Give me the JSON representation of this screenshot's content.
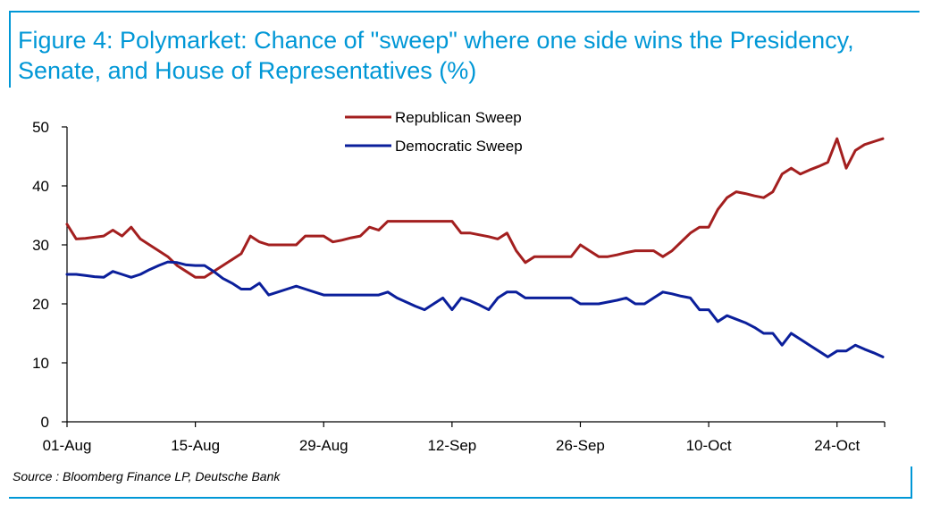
{
  "figure": {
    "title": "Figure 4: Polymarket: Chance of \"sweep\" where one side wins the Presidency, Senate, and House of Representatives (%)",
    "source": "Source : Bloomberg Finance LP, Deutsche Bank"
  },
  "chart_data": {
    "type": "line",
    "title": "",
    "xlabel": "",
    "ylabel": "",
    "x_unit": "days since 01-Aug",
    "x_range": [
      0,
      89
    ],
    "ylim": [
      0,
      50
    ],
    "y_ticks": [
      0,
      10,
      20,
      30,
      40,
      50
    ],
    "x_ticks": [
      {
        "label": "01-Aug",
        "day": 0
      },
      {
        "label": "15-Aug",
        "day": 14
      },
      {
        "label": "29-Aug",
        "day": 28
      },
      {
        "label": "12-Sep",
        "day": 42
      },
      {
        "label": "26-Sep",
        "day": 56
      },
      {
        "label": "10-Oct",
        "day": 70
      },
      {
        "label": "24-Oct",
        "day": 84
      }
    ],
    "legend_position": "top-center",
    "grid": false,
    "series": [
      {
        "name": "Republican Sweep",
        "color": "#a31f1f",
        "x": [
          0,
          1,
          2,
          3,
          4,
          5,
          6,
          7,
          8,
          9,
          10,
          11,
          12,
          13,
          14,
          15,
          16,
          17,
          18,
          19,
          20,
          21,
          22,
          23,
          24,
          25,
          26,
          27,
          28,
          29,
          30,
          31,
          32,
          33,
          34,
          35,
          36,
          37,
          38,
          39,
          40,
          41,
          42,
          43,
          44,
          45,
          46,
          47,
          48,
          49,
          50,
          51,
          52,
          53,
          54,
          55,
          56,
          57,
          58,
          59,
          60,
          61,
          62,
          63,
          64,
          65,
          66,
          67,
          68,
          69,
          70,
          71,
          72,
          73,
          74,
          75,
          76,
          77,
          78,
          79,
          80,
          81,
          82,
          83,
          84,
          85,
          86,
          87,
          88,
          89
        ],
        "values": [
          33.5,
          31,
          31.1,
          31.3,
          31.5,
          32.5,
          31.5,
          33,
          31,
          30,
          29,
          28,
          26.5,
          25.5,
          24.5,
          24.5,
          25.5,
          26.5,
          27.5,
          28.5,
          31.5,
          30.5,
          30,
          30,
          30,
          30,
          31.5,
          31.5,
          31.5,
          30.5,
          30.8,
          31.2,
          31.5,
          33,
          32.5,
          34,
          34,
          34,
          34,
          34,
          34,
          34,
          34,
          32,
          32,
          31.7,
          31.4,
          31,
          32,
          29,
          27,
          28,
          28,
          28,
          28,
          28,
          30,
          29,
          28,
          28,
          28.3,
          28.7,
          29,
          29,
          29,
          28,
          29,
          30.5,
          32,
          33,
          33,
          36,
          38,
          39,
          38.7,
          38.3,
          38,
          39,
          42,
          43,
          42,
          42.7,
          43.3,
          44,
          48,
          43,
          46,
          47,
          47.5,
          48
        ]
      },
      {
        "name": "Democratic Sweep",
        "color": "#0b1f9b",
        "x": [
          0,
          1,
          2,
          3,
          4,
          5,
          6,
          7,
          8,
          9,
          10,
          11,
          12,
          13,
          14,
          15,
          16,
          17,
          18,
          19,
          20,
          21,
          22,
          23,
          24,
          25,
          26,
          27,
          28,
          29,
          30,
          31,
          32,
          33,
          34,
          35,
          36,
          37,
          38,
          39,
          40,
          41,
          42,
          43,
          44,
          45,
          46,
          47,
          48,
          49,
          50,
          51,
          52,
          53,
          54,
          55,
          56,
          57,
          58,
          59,
          60,
          61,
          62,
          63,
          64,
          65,
          66,
          67,
          68,
          69,
          70,
          71,
          72,
          73,
          74,
          75,
          76,
          77,
          78,
          79,
          80,
          81,
          82,
          83,
          84,
          85,
          86,
          87,
          88,
          89
        ],
        "values": [
          25,
          25,
          24.8,
          24.6,
          24.5,
          25.5,
          25,
          24.5,
          25,
          25.8,
          26.5,
          27.1,
          27,
          26.6,
          26.5,
          26.5,
          25.5,
          24.3,
          23.5,
          22.5,
          22.5,
          23.5,
          21.5,
          22,
          22.5,
          23,
          22.5,
          22,
          21.5,
          21.5,
          21.5,
          21.5,
          21.5,
          21.5,
          21.5,
          22,
          21,
          20.3,
          19.6,
          19,
          20,
          21,
          19,
          21,
          20.5,
          19.8,
          19,
          21,
          22,
          22,
          21,
          21,
          21,
          21,
          21,
          21,
          20,
          20,
          20,
          20.3,
          20.6,
          21,
          20,
          20,
          21,
          22,
          21.7,
          21.3,
          21,
          19,
          19,
          17,
          18,
          17.4,
          16.8,
          16,
          15,
          15,
          13,
          15,
          14,
          13,
          12,
          11,
          12,
          12,
          13,
          12.3,
          11.7,
          11
        ]
      }
    ]
  }
}
